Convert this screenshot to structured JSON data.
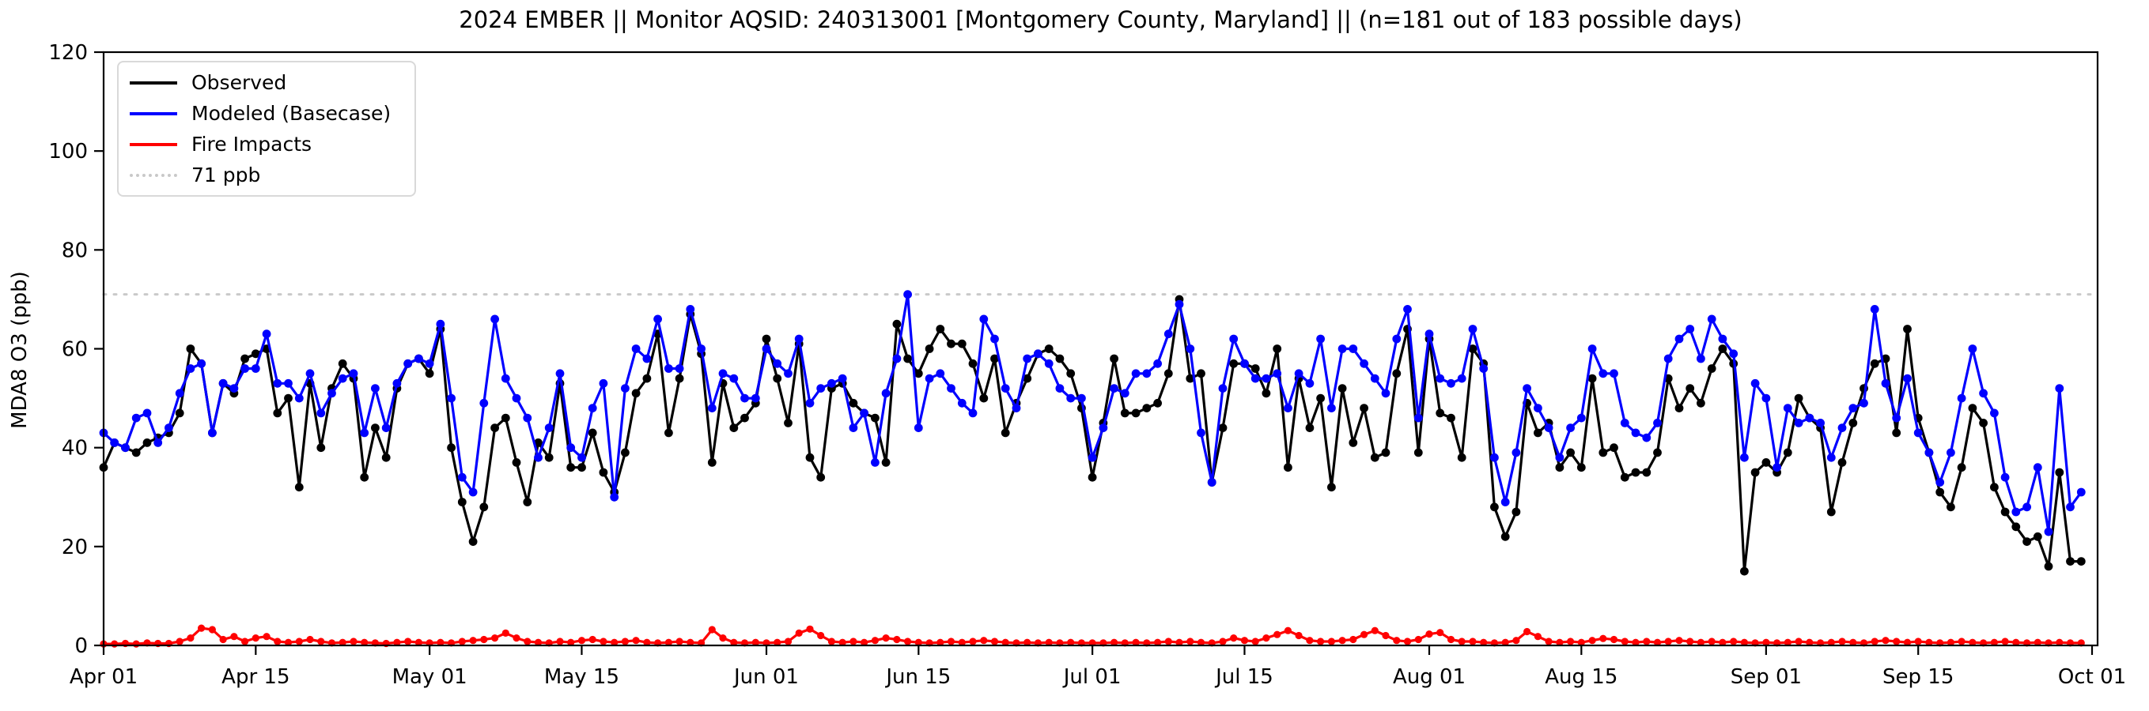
{
  "title": "2024 EMBER || Monitor AQSID: 240313001 [Montgomery County, Maryland] || (n=181 out of 183 possible days)",
  "axes": {
    "ylabel": "MDA8 O3 (ppb)"
  },
  "legend": {
    "items": [
      {
        "label": "Observed",
        "color": "#000000",
        "style": "solid"
      },
      {
        "label": "Modeled (Basecase)",
        "color": "#0000ff",
        "style": "solid"
      },
      {
        "label": "Fire Impacts",
        "color": "#ff0000",
        "style": "solid"
      },
      {
        "label": "71 ppb",
        "color": "#c9c9c9",
        "style": "dotted"
      }
    ]
  },
  "chart_data": {
    "type": "line",
    "title": "2024 EMBER || Monitor AQSID: 240313001 [Montgomery County, Maryland] || (n=181 out of 183 possible days)",
    "xlabel": "",
    "ylabel": "MDA8 O3 (ppb)",
    "ylim": [
      0,
      120
    ],
    "y_ticks": [
      0,
      20,
      40,
      60,
      80,
      100,
      120
    ],
    "x_tick_days": [
      0,
      14,
      30,
      44,
      61,
      75,
      91,
      105,
      122,
      136,
      153,
      167,
      183
    ],
    "x_tick_labels": [
      "Apr 01",
      "Apr 15",
      "May 01",
      "May 15",
      "Jun 01",
      "Jun 15",
      "Jul 01",
      "Jul 15",
      "Aug 01",
      "Aug 15",
      "Sep 01",
      "Sep 15",
      "Oct 01"
    ],
    "n_days": 183,
    "date_range": [
      "2024-04-01",
      "2024-09-30"
    ],
    "grid": false,
    "legend_position": "upper-left",
    "threshold": {
      "value": 71,
      "label": "71 ppb",
      "color": "#c9c9c9",
      "style": "dotted"
    },
    "series": [
      {
        "name": "Observed",
        "color": "#000000",
        "values": [
          36,
          41,
          40,
          39,
          41,
          42,
          43,
          47,
          60,
          57,
          43,
          53,
          51,
          58,
          59,
          60,
          47,
          50,
          32,
          53,
          40,
          52,
          57,
          54,
          34,
          44,
          38,
          52,
          57,
          58,
          55,
          64,
          40,
          29,
          21,
          28,
          44,
          46,
          37,
          29,
          41,
          38,
          53,
          36,
          36,
          43,
          35,
          31,
          39,
          51,
          54,
          63,
          43,
          54,
          67,
          59,
          37,
          53,
          44,
          46,
          49,
          62,
          54,
          45,
          61,
          38,
          34,
          52,
          53,
          49,
          47,
          46,
          37,
          65,
          58,
          55,
          60,
          64,
          61,
          61,
          57,
          50,
          58,
          43,
          49,
          54,
          59,
          60,
          58,
          55,
          48,
          34,
          45,
          58,
          47,
          47,
          48,
          49,
          55,
          70,
          54,
          55,
          33,
          44,
          57,
          57,
          56,
          51,
          60,
          36,
          54,
          44,
          50,
          32,
          52,
          41,
          48,
          38,
          39,
          55,
          64,
          39,
          62,
          47,
          46,
          38,
          60,
          57,
          28,
          22,
          27,
          49,
          43,
          45,
          36,
          39,
          36,
          54,
          39,
          40,
          34,
          35,
          35,
          39,
          54,
          48,
          52,
          49,
          56,
          60,
          57,
          15,
          35,
          37,
          35,
          39,
          50,
          46,
          44,
          27,
          37,
          45,
          52,
          57,
          58,
          43,
          64,
          46,
          39,
          31,
          28,
          36,
          48,
          45,
          32,
          27,
          24,
          21,
          22,
          16,
          35,
          17,
          17
        ]
      },
      {
        "name": "Modeled (Basecase)",
        "color": "#0000ff",
        "values": [
          43,
          41,
          40,
          46,
          47,
          41,
          44,
          51,
          56,
          57,
          43,
          53,
          52,
          56,
          56,
          63,
          53,
          53,
          50,
          55,
          47,
          51,
          54,
          55,
          43,
          52,
          44,
          53,
          57,
          58,
          57,
          65,
          50,
          34,
          31,
          49,
          66,
          54,
          50,
          46,
          38,
          44,
          55,
          40,
          38,
          48,
          53,
          30,
          52,
          60,
          58,
          66,
          56,
          56,
          68,
          60,
          48,
          55,
          54,
          50,
          50,
          60,
          57,
          55,
          62,
          49,
          52,
          53,
          54,
          44,
          47,
          37,
          51,
          58,
          71,
          44,
          54,
          55,
          52,
          49,
          47,
          66,
          62,
          52,
          48,
          58,
          59,
          57,
          52,
          50,
          50,
          38,
          44,
          52,
          51,
          55,
          55,
          57,
          63,
          69,
          60,
          43,
          33,
          52,
          62,
          57,
          54,
          54,
          55,
          48,
          55,
          53,
          62,
          48,
          60,
          60,
          57,
          54,
          51,
          62,
          68,
          46,
          63,
          54,
          53,
          54,
          64,
          56,
          38,
          29,
          39,
          52,
          48,
          44,
          38,
          44,
          46,
          60,
          55,
          55,
          45,
          43,
          42,
          45,
          58,
          62,
          64,
          58,
          66,
          62,
          59,
          38,
          53,
          50,
          36,
          48,
          45,
          46,
          45,
          38,
          44,
          48,
          49,
          68,
          53,
          46,
          54,
          43,
          39,
          33,
          39,
          50,
          60,
          51,
          47,
          34,
          27,
          28,
          36,
          23,
          52,
          28,
          31
        ]
      },
      {
        "name": "Fire Impacts",
        "color": "#ff0000",
        "values": [
          0.3,
          0.3,
          0.4,
          0.3,
          0.5,
          0.4,
          0.4,
          0.8,
          1.5,
          3.5,
          3.2,
          1.2,
          1.8,
          0.8,
          1.5,
          1.8,
          0.8,
          0.6,
          0.8,
          1.2,
          0.8,
          0.5,
          0.6,
          0.8,
          0.6,
          0.5,
          0.4,
          0.6,
          0.8,
          0.6,
          0.5,
          0.6,
          0.5,
          0.8,
          1.0,
          1.2,
          1.5,
          2.5,
          1.5,
          0.8,
          0.6,
          0.5,
          0.8,
          0.6,
          1.0,
          1.2,
          0.8,
          0.6,
          0.8,
          1.0,
          0.6,
          0.5,
          0.6,
          0.8,
          0.6,
          0.5,
          3.2,
          1.5,
          0.6,
          0.5,
          0.6,
          0.5,
          0.6,
          0.8,
          2.5,
          3.3,
          2.0,
          0.8,
          0.6,
          0.8,
          0.6,
          1.0,
          1.5,
          1.2,
          0.8,
          0.6,
          0.5,
          0.6,
          0.8,
          0.6,
          0.8,
          1.0,
          0.8,
          0.6,
          0.5,
          0.6,
          0.5,
          0.6,
          0.5,
          0.6,
          0.5,
          0.5,
          0.5,
          0.6,
          0.5,
          0.6,
          0.5,
          0.6,
          0.8,
          0.6,
          0.8,
          0.6,
          0.5,
          0.8,
          1.5,
          1.0,
          0.8,
          1.5,
          2.2,
          3.0,
          2.0,
          1.0,
          0.8,
          0.8,
          1.0,
          1.2,
          2.2,
          3.0,
          2.0,
          1.0,
          0.8,
          1.2,
          2.3,
          2.6,
          1.2,
          0.8,
          0.8,
          0.6,
          0.5,
          0.6,
          1.0,
          2.8,
          1.8,
          0.8,
          0.6,
          0.8,
          0.6,
          1.0,
          1.4,
          1.2,
          0.8,
          0.6,
          0.8,
          0.6,
          0.8,
          1.0,
          0.8,
          0.6,
          0.8,
          0.6,
          0.8,
          0.6,
          0.5,
          0.6,
          0.5,
          0.6,
          0.8,
          0.6,
          0.5,
          0.6,
          0.8,
          0.6,
          0.5,
          0.8,
          1.0,
          0.8,
          0.6,
          0.8,
          0.6,
          0.5,
          0.6,
          0.8,
          0.6,
          0.5,
          0.6,
          0.8,
          0.6,
          0.5,
          0.6,
          0.5,
          0.6,
          0.5,
          0.5
        ]
      }
    ],
    "layout": {
      "plot_left": 131,
      "plot_right": 2652,
      "plot_top": 66,
      "plot_bottom": 817,
      "x_tick_end": 2645
    }
  }
}
